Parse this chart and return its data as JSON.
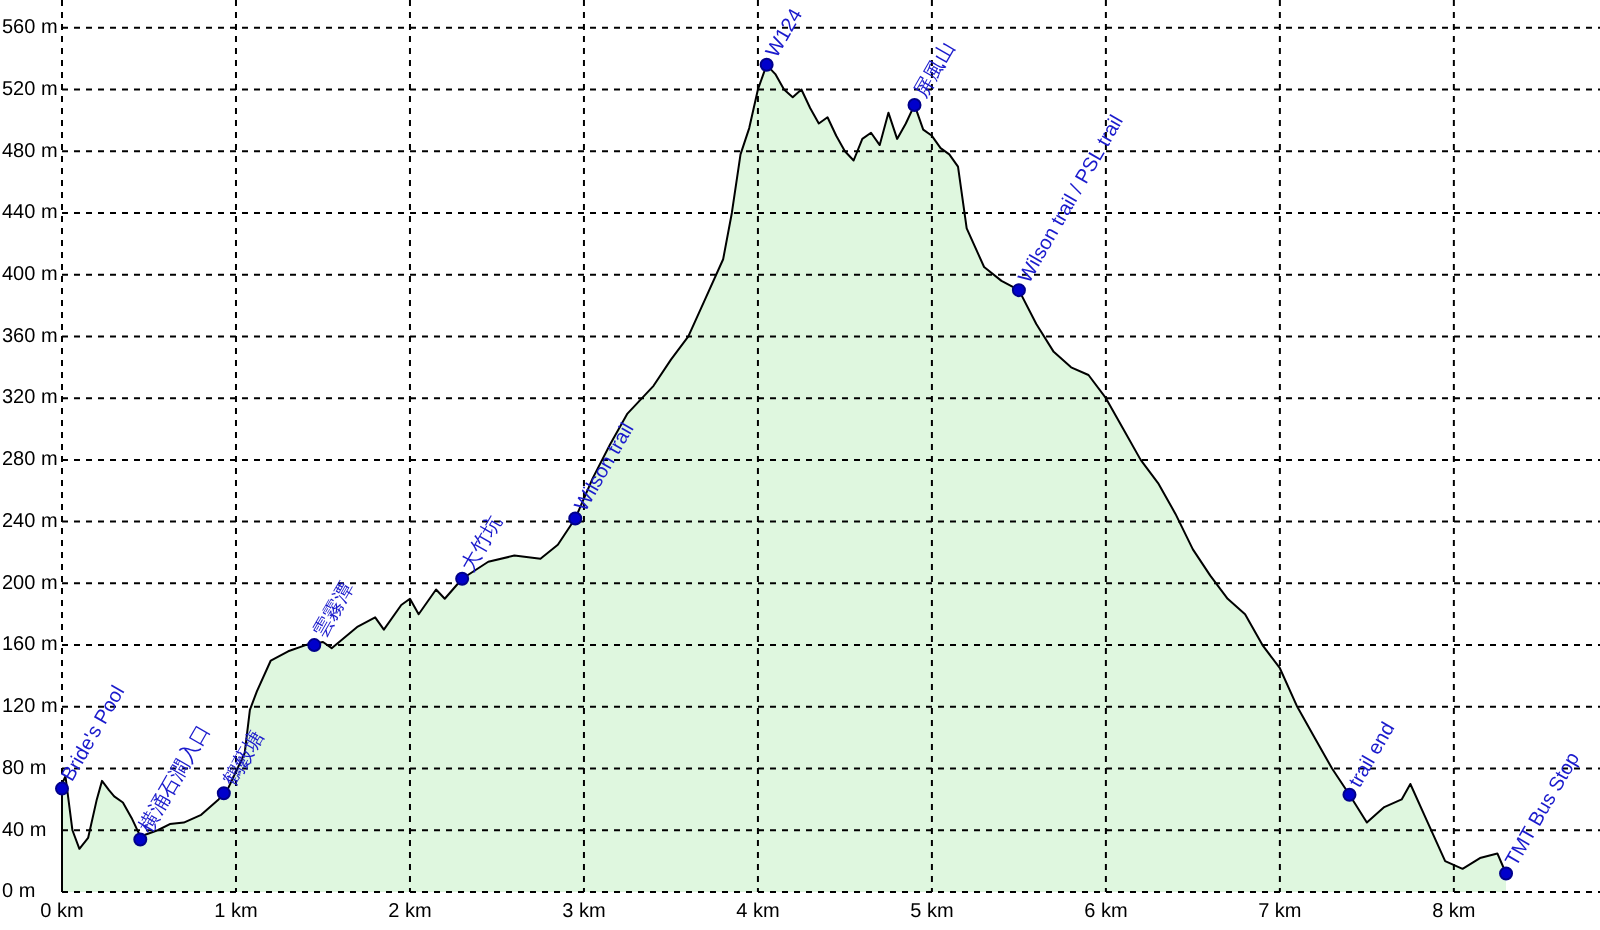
{
  "chart_data": {
    "type": "area",
    "x": [
      0,
      0.0,
      0.02,
      0.06,
      0.1,
      0.15,
      0.2,
      0.23,
      0.27,
      0.3,
      0.35,
      0.4,
      0.45,
      0.55,
      0.62,
      0.7,
      0.8,
      0.9,
      0.95,
      1.0,
      1.05,
      1.08,
      1.12,
      1.2,
      1.3,
      1.4,
      1.5,
      1.55,
      1.7,
      1.8,
      1.85,
      1.95,
      2.0,
      2.05,
      2.15,
      2.2,
      2.3,
      2.45,
      2.6,
      2.75,
      2.85,
      2.95,
      3.05,
      3.15,
      3.25,
      3.4,
      3.5,
      3.6,
      3.7,
      3.8,
      3.85,
      3.9,
      3.95,
      4.0,
      4.05,
      4.1,
      4.15,
      4.2,
      4.25,
      4.3,
      4.35,
      4.4,
      4.45,
      4.5,
      4.55,
      4.6,
      4.65,
      4.7,
      4.75,
      4.8,
      4.85,
      4.9,
      4.95,
      5.0,
      5.05,
      5.1,
      5.15,
      5.2,
      5.3,
      5.4,
      5.5,
      5.6,
      5.7,
      5.8,
      5.9,
      6.0,
      6.1,
      6.2,
      6.3,
      6.4,
      6.5,
      6.6,
      6.7,
      6.8,
      6.9,
      7.0,
      7.1,
      7.2,
      7.3,
      7.4,
      7.5,
      7.6,
      7.7,
      7.75,
      7.85,
      7.95,
      8.05,
      8.15,
      8.25,
      8.3
    ],
    "series": [
      {
        "color": "#dff7df",
        "values": [
          0,
          70,
          75,
          40,
          28,
          35,
          60,
          72,
          66,
          62,
          58,
          48,
          36,
          40,
          44,
          45,
          50,
          60,
          66,
          78,
          90,
          118,
          130,
          150,
          156,
          160,
          162,
          158,
          172,
          178,
          170,
          186,
          190,
          180,
          196,
          190,
          203,
          214,
          218,
          216,
          225,
          242,
          268,
          290,
          310,
          328,
          345,
          360,
          385,
          410,
          440,
          478,
          495,
          520,
          536,
          530,
          520,
          515,
          520,
          508,
          498,
          502,
          490,
          480,
          474,
          488,
          492,
          484,
          505,
          488,
          498,
          510,
          494,
          490,
          482,
          478,
          470,
          430,
          405,
          396,
          390,
          368,
          350,
          340,
          335,
          320,
          300,
          280,
          265,
          245,
          222,
          205,
          190,
          180,
          160,
          145,
          120,
          100,
          80,
          63,
          45,
          55,
          60,
          70,
          45,
          20,
          15,
          22,
          25,
          12
        ]
      }
    ],
    "xlim": [
      0,
      8.84
    ],
    "ylim": [
      0,
      578
    ],
    "xticks": [
      {
        "value": 0,
        "label": "0 km"
      },
      {
        "value": 1,
        "label": "1 km"
      },
      {
        "value": 2,
        "label": "2 km"
      },
      {
        "value": 3,
        "label": "3 km"
      },
      {
        "value": 4,
        "label": "4 km"
      },
      {
        "value": 5,
        "label": "5 km"
      },
      {
        "value": 6,
        "label": "6 km"
      },
      {
        "value": 7,
        "label": "7 km"
      },
      {
        "value": 8,
        "label": "8 km"
      }
    ],
    "yticks": [
      {
        "value": 0,
        "label": "0 m"
      },
      {
        "value": 40,
        "label": "40 m"
      },
      {
        "value": 80,
        "label": "80 m"
      },
      {
        "value": 120,
        "label": "120 m"
      },
      {
        "value": 160,
        "label": "160 m"
      },
      {
        "value": 200,
        "label": "200 m"
      },
      {
        "value": 240,
        "label": "240 m"
      },
      {
        "value": 280,
        "label": "280 m"
      },
      {
        "value": 320,
        "label": "320 m"
      },
      {
        "value": 360,
        "label": "360 m"
      },
      {
        "value": 400,
        "label": "400 m"
      },
      {
        "value": 440,
        "label": "440 m"
      },
      {
        "value": 480,
        "label": "480 m"
      },
      {
        "value": 520,
        "label": "520 m"
      },
      {
        "value": 560,
        "label": "560 m"
      }
    ],
    "grid": true,
    "annotations": [
      {
        "text": "Bride's Pool",
        "x": 0.0,
        "y": 67
      },
      {
        "text": "横涌石澗入口",
        "x": 0.45,
        "y": 34
      },
      {
        "text": "鶴藪塘",
        "x": 0.93,
        "y": 64
      },
      {
        "text": "雲霧潭",
        "x": 1.45,
        "y": 160
      },
      {
        "text": "大竹坑",
        "x": 2.3,
        "y": 203
      },
      {
        "text": "Wilson trail",
        "x": 2.95,
        "y": 242
      },
      {
        "text": "W124",
        "x": 4.05,
        "y": 536
      },
      {
        "text": "屏風山",
        "x": 4.9,
        "y": 510
      },
      {
        "text": "Wilson trail / PSL trail",
        "x": 5.5,
        "y": 390
      },
      {
        "text": "trail end",
        "x": 7.4,
        "y": 63
      },
      {
        "text": "TMT Bus Stop",
        "x": 8.3,
        "y": 12
      }
    ]
  }
}
